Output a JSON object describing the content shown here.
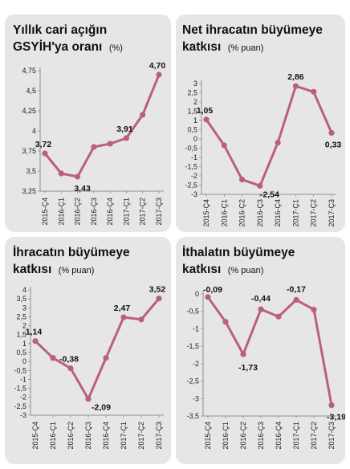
{
  "style": {
    "line_color": "#bb5f7e",
    "panel_bg": "#e6e6e6"
  },
  "chart_data": [
    {
      "type": "line",
      "title_line1": "Yıllık cari açığın",
      "title_line2": "GSYİH'ya oranı",
      "unit": "(%)",
      "categories": [
        "2015-Ç4",
        "2016-Ç1",
        "2016-Ç2",
        "2016-Ç3",
        "2016-Ç4",
        "2017-Ç1",
        "2017-Ç2",
        "2017-Ç3"
      ],
      "values": [
        3.72,
        3.47,
        3.43,
        3.8,
        3.84,
        3.91,
        4.2,
        4.7
      ],
      "data_labels": [
        {
          "index": 0,
          "text": "3,72"
        },
        {
          "index": 2,
          "text": "3,43"
        },
        {
          "index": 5,
          "text": "3,91"
        },
        {
          "index": 7,
          "text": "4,70"
        }
      ],
      "yticks": [
        3.25,
        3.5,
        3.75,
        4,
        4.25,
        4.5,
        4.75
      ],
      "ytick_labels": [
        "3,25",
        "3,5",
        "3,75",
        "4",
        "4,25",
        "4,5",
        "4,75"
      ],
      "ylim": [
        3.25,
        4.75
      ]
    },
    {
      "type": "line",
      "title_line1": "Net ihracatın büyümeye",
      "title_line2": "katkısı",
      "unit": "(% puan)",
      "categories": [
        "2015-Ç4",
        "2016-Ç1",
        "2016-Ç2",
        "2016-Ç3",
        "2016-Ç4",
        "2017-Ç1",
        "2017-Ç2",
        "2017-Ç3"
      ],
      "values": [
        1.05,
        -0.35,
        -2.2,
        -2.54,
        -0.2,
        2.86,
        2.55,
        0.33
      ],
      "data_labels": [
        {
          "index": 0,
          "text": "1,05"
        },
        {
          "index": 3,
          "text": "-2,54"
        },
        {
          "index": 5,
          "text": "2,86"
        },
        {
          "index": 7,
          "text": "0,33"
        }
      ],
      "yticks": [
        -3,
        -2.5,
        -2,
        -1.5,
        -1,
        -0.5,
        0,
        0.5,
        1,
        1.5,
        2,
        2.5,
        3
      ],
      "ytick_labels": [
        "-3",
        "-2,5",
        "-2",
        "-1,5",
        "-1",
        "-0,5",
        "0",
        "0,5",
        "1",
        "1,5",
        "2",
        "2,5",
        "3"
      ],
      "ylim": [
        -3,
        3
      ]
    },
    {
      "type": "line",
      "title_line1": "İhracatın büyümeye",
      "title_line2": "katkısı",
      "unit": "(% puan)",
      "categories": [
        "2015-Ç4",
        "2016-Ç1",
        "2016-Ç2",
        "2016-Ç3",
        "2016-Ç4",
        "2017-Ç1",
        "2017-Ç2",
        "2017-Ç3"
      ],
      "values": [
        1.14,
        0.2,
        -0.38,
        -2.09,
        0.2,
        2.47,
        2.35,
        3.52
      ],
      "data_labels": [
        {
          "index": 0,
          "text": "1,14"
        },
        {
          "index": 2,
          "text": "-0,38"
        },
        {
          "index": 3,
          "text": "-2,09"
        },
        {
          "index": 5,
          "text": "2,47"
        },
        {
          "index": 7,
          "text": "3,52"
        }
      ],
      "yticks": [
        -3,
        -2.5,
        -2,
        -1.5,
        -1,
        -0.5,
        0,
        0.5,
        1,
        1.5,
        2,
        2.5,
        3,
        3.5,
        4
      ],
      "ytick_labels": [
        "-3",
        "-2,5",
        "-2",
        "-1,5",
        "-1",
        "-0,5",
        "0",
        "0,5",
        "1",
        "1,5",
        "2",
        "2,5",
        "3",
        "3,5",
        "4"
      ],
      "ylim": [
        -3,
        4
      ]
    },
    {
      "type": "line",
      "title_line1": "İthalatın büyümeye",
      "title_line2": "katkısı",
      "unit": "(% puan)",
      "categories": [
        "2015-Ç4",
        "2016-Ç1",
        "2016-Ç2",
        "2016-Ç3",
        "2016-Ç4",
        "2017-Ç1",
        "2017-Ç2",
        "2017-Ç3"
      ],
      "values": [
        -0.09,
        -0.8,
        -1.73,
        -0.44,
        -0.65,
        -0.17,
        -0.45,
        -3.19
      ],
      "data_labels": [
        {
          "index": 0,
          "text": "-0,09"
        },
        {
          "index": 2,
          "text": "-1,73"
        },
        {
          "index": 3,
          "text": "-0,44"
        },
        {
          "index": 5,
          "text": "-0,17"
        },
        {
          "index": 7,
          "text": "-3,19"
        }
      ],
      "yticks": [
        -3.5,
        -3,
        -2.5,
        -2,
        -1.5,
        -1,
        -0.5,
        0
      ],
      "ytick_labels": [
        "-3,5",
        "-3",
        "-2,5",
        "-2",
        "-1,5",
        "-1",
        "-0,5",
        "0"
      ],
      "ylim": [
        -3.5,
        0
      ]
    }
  ]
}
